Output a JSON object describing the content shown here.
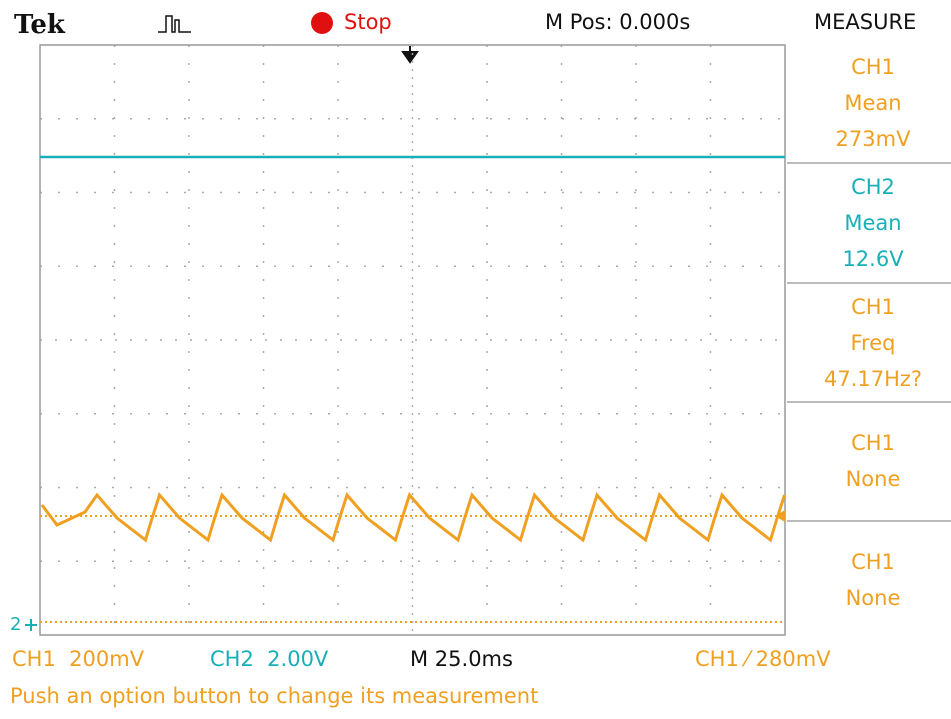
{
  "header": {
    "brand": "Tek",
    "status": "Stop",
    "position": "M Pos: 0.000s",
    "menu_title": "MEASURE"
  },
  "measurements": [
    {
      "channel": "CH1",
      "type": "Mean",
      "value": "273mV"
    },
    {
      "channel": "CH2",
      "type": "Mean",
      "value": "12.6V"
    },
    {
      "channel": "CH1",
      "type": "Freq",
      "value": "47.17Hz?"
    },
    {
      "channel": "CH1",
      "type": "None"
    },
    {
      "channel": "CH1",
      "type": "None"
    }
  ],
  "markers": {
    "ch2": "2"
  },
  "status_bar": {
    "ch1_scale": "CH1  200mV",
    "ch2_scale": "CH2  2.00V",
    "timebase": "M 25.0ms",
    "trigger": "CH1 ⁄ 280mV"
  },
  "message": "Push an option button to change its measurement"
}
